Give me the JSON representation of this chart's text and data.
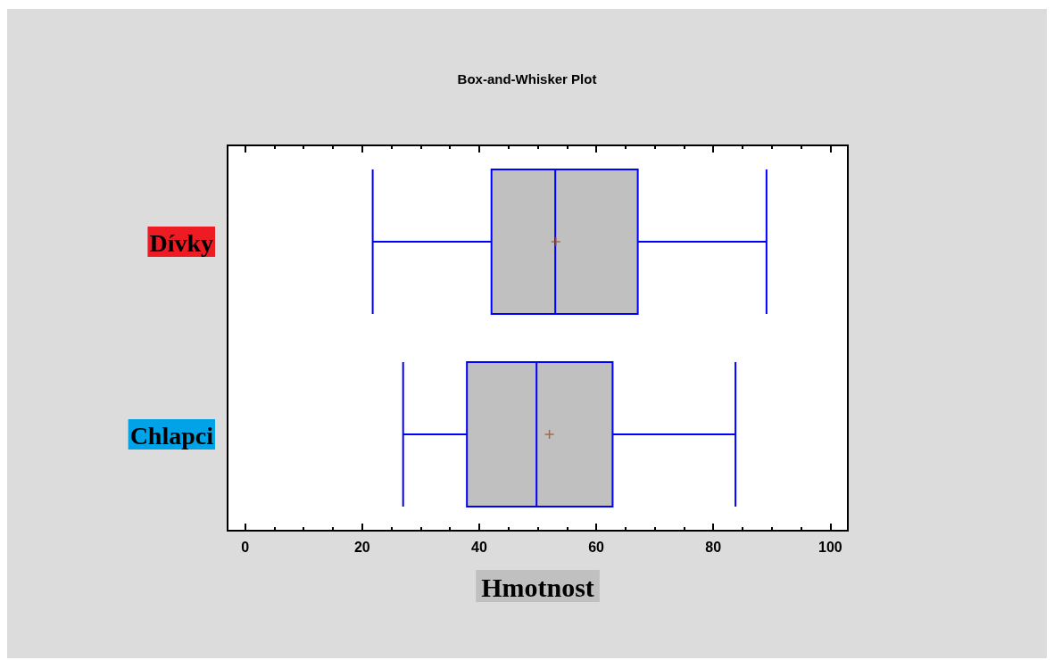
{
  "chart_data": {
    "type": "box",
    "title": "Box-and-Whisker Plot",
    "xlabel": "Hmotnost",
    "orientation": "horizontal",
    "categories": [
      "Dívky",
      "Chlapci"
    ],
    "xlim": [
      -3,
      103
    ],
    "xticks": [
      0,
      20,
      40,
      60,
      80,
      100
    ],
    "grid": false,
    "color": "#0000ff",
    "boxes": [
      {
        "low": 21.8,
        "q1": 42.1,
        "median": 53.0,
        "q3": 67.1,
        "high": 89.1,
        "mean": 53.1
      },
      {
        "low": 27.0,
        "q1": 37.9,
        "median": 49.8,
        "q3": 62.8,
        "high": 83.8,
        "mean": 52.0
      }
    ]
  }
}
